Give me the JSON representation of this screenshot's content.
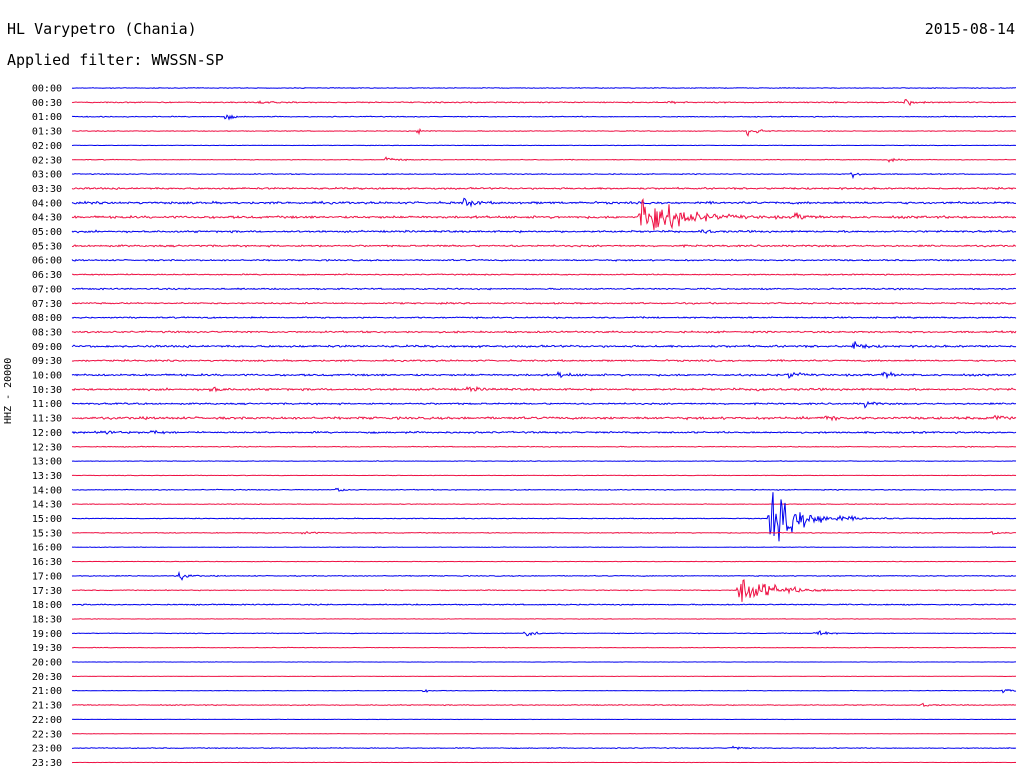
{
  "header": {
    "station": "HL Varypetro (Chania)",
    "date": "2015-08-14",
    "filter": "Applied filter: WWSSN-SP"
  },
  "chart_data": {
    "type": "line",
    "title": "HL Varypetro (Chania)",
    "subtitle": "Applied filter: WWSSN-SP",
    "ylabel": "HHZ - 20000",
    "row_labels": [
      "00:00",
      "00:30",
      "01:00",
      "01:30",
      "02:00",
      "02:30",
      "03:00",
      "03:30",
      "04:00",
      "04:30",
      "05:00",
      "05:30",
      "06:00",
      "06:30",
      "07:00",
      "07:30",
      "08:00",
      "08:30",
      "09:00",
      "09:30",
      "10:00",
      "10:30",
      "11:00",
      "11:30",
      "12:00",
      "12:30",
      "13:00",
      "13:30",
      "14:00",
      "14:30",
      "15:00",
      "15:30",
      "16:00",
      "16:30",
      "17:00",
      "17:30",
      "18:00",
      "18:30",
      "19:00",
      "19:30",
      "20:00",
      "20:30",
      "21:00",
      "21:30",
      "22:00",
      "22:30",
      "23:00",
      "23:30"
    ],
    "colors": [
      "#0000ee",
      "#ee1144"
    ],
    "x_unit": "minutes into row (0-30)",
    "noise": [
      0.5,
      0.8,
      0.6,
      0.5,
      0.3,
      0.5,
      0.6,
      1.2,
      1.5,
      1.6,
      1.3,
      1.2,
      1.0,
      0.8,
      1.0,
      1.0,
      1.0,
      1.2,
      1.4,
      1.1,
      1.3,
      1.4,
      1.1,
      1.6,
      1.2,
      0.6,
      0.4,
      0.3,
      0.6,
      0.5,
      0.5,
      0.6,
      0.4,
      0.3,
      0.6,
      0.6,
      0.8,
      0.3,
      0.5,
      0.4,
      0.2,
      0.2,
      0.4,
      0.6,
      0.2,
      0.3,
      0.6,
      0.2
    ],
    "events": [
      {
        "row": 1,
        "minute": 6,
        "amp": 2
      },
      {
        "row": 1,
        "minute": 19,
        "amp": 2
      },
      {
        "row": 1,
        "minute": 26.5,
        "amp": 5
      },
      {
        "row": 2,
        "minute": 4.9,
        "amp": 4
      },
      {
        "row": 3,
        "minute": 11,
        "amp": 3
      },
      {
        "row": 3,
        "minute": 21.5,
        "amp": 9
      },
      {
        "row": 5,
        "minute": 10,
        "amp": 5
      },
      {
        "row": 5,
        "minute": 26,
        "amp": 4
      },
      {
        "row": 6,
        "minute": 24.8,
        "amp": 4
      },
      {
        "row": 8,
        "minute": 12.5,
        "amp": 9
      },
      {
        "row": 9,
        "minute": 18.1,
        "amp": 40
      },
      {
        "row": 9,
        "minute": 23,
        "amp": 6
      },
      {
        "row": 10,
        "minute": 20,
        "amp": 4
      },
      {
        "row": 18,
        "minute": 24.8,
        "amp": 8
      },
      {
        "row": 20,
        "minute": 15.5,
        "amp": 5
      },
      {
        "row": 20,
        "minute": 22.8,
        "amp": 6
      },
      {
        "row": 20,
        "minute": 25.8,
        "amp": 5
      },
      {
        "row": 21,
        "minute": 4.4,
        "amp": 5
      },
      {
        "row": 21,
        "minute": 12.6,
        "amp": 4
      },
      {
        "row": 21,
        "minute": 21.8,
        "amp": 3
      },
      {
        "row": 22,
        "minute": 25.2,
        "amp": 5
      },
      {
        "row": 23,
        "minute": 24,
        "amp": 5
      },
      {
        "row": 23,
        "minute": 29.3,
        "amp": 4
      },
      {
        "row": 24,
        "minute": 1,
        "amp": 5
      },
      {
        "row": 24,
        "minute": 2.5,
        "amp": 4
      },
      {
        "row": 28,
        "minute": 8.4,
        "amp": 4
      },
      {
        "row": 30,
        "minute": 22.2,
        "amp": 38
      },
      {
        "row": 31,
        "minute": 7.3,
        "amp": 4
      },
      {
        "row": 31,
        "minute": 29.2,
        "amp": 3
      },
      {
        "row": 34,
        "minute": 3.4,
        "amp": 6
      },
      {
        "row": 35,
        "minute": 21.2,
        "amp": 24
      },
      {
        "row": 38,
        "minute": 14.4,
        "amp": 8
      },
      {
        "row": 38,
        "minute": 23.6,
        "amp": 8
      },
      {
        "row": 42,
        "minute": 11.2,
        "amp": 2
      },
      {
        "row": 42,
        "minute": 29.6,
        "amp": 3
      },
      {
        "row": 43,
        "minute": 27,
        "amp": 3
      },
      {
        "row": 46,
        "minute": 21,
        "amp": 3
      }
    ]
  }
}
